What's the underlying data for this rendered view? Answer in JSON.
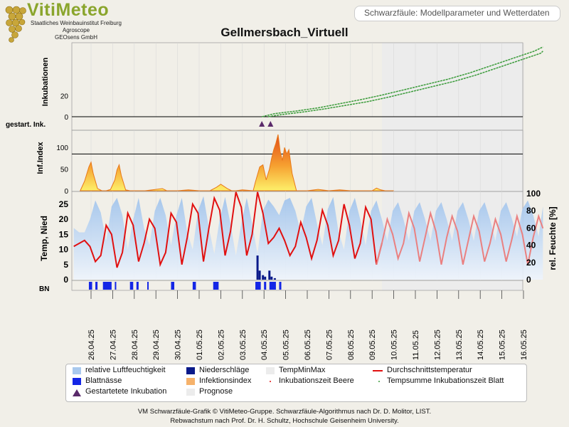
{
  "logo": {
    "name": "VitiMeteo",
    "lines": [
      "Staatliches Weinbauinstitut Freiburg",
      "Agroscope",
      "GEOsens GmbH"
    ]
  },
  "header": {
    "title": "Schwarzfäule: Modellparameter und Wetterdaten"
  },
  "colors": {
    "inkubation": "#3a9b3a",
    "infektion": "#e87818",
    "temp": "#e11010",
    "humidity": "#a9c9ee",
    "rain": "#0a1a8a",
    "leafwet": "#1426e6",
    "prognose": "#ececec",
    "marker": "#5a2a6a"
  },
  "chart_data": {
    "type": "line",
    "title": "Gellmersbach_Virtuell",
    "dates": [
      "26.04.25",
      "27.04.25",
      "28.04.25",
      "29.04.25",
      "30.04.25",
      "01.05.25",
      "02.05.25",
      "03.05.25",
      "04.05.25",
      "05.05.25",
      "06.05.25",
      "07.05.25",
      "08.05.25",
      "09.05.25",
      "10.05.25",
      "11.05.25",
      "12.05.25",
      "13.05.25",
      "14.05.25",
      "15.05.25",
      "16.05.25"
    ],
    "forecast_start": "09.05.25 12:00",
    "panels": [
      {
        "ylabel": "Inkubationen",
        "ticks": [
          0,
          20
        ],
        "series": [
          {
            "x": [
              7.9,
              8.5,
              9.5,
              10.5,
              11.5,
              12.5,
              13.5,
              14.5,
              15.5,
              16.5,
              17.5,
              18.5,
              19.5,
              20.5,
              20.9
            ],
            "y": [
              0,
              3,
              5.5,
              8.5,
              12.5,
              16.5,
              21,
              26,
              31,
              36,
              42,
              49,
              56,
              63,
              67
            ]
          },
          {
            "x": [
              8.2,
              8.8,
              9.8,
              10.8,
              11.8,
              12.8,
              13.8,
              14.8,
              15.8,
              16.8,
              17.8,
              18.8,
              19.8,
              20.8,
              20.9
            ],
            "y": [
              0,
              2,
              4.5,
              7.5,
              11,
              14.5,
              19,
              24,
              29,
              34,
              40,
              47,
              54,
              61,
              63
            ]
          }
        ]
      },
      {
        "ylabel": "gestart. Ink.",
        "markers_x": [
          7.9,
          8.3
        ]
      },
      {
        "ylabel": "Inf.Index",
        "ticks": [
          0,
          50,
          100
        ],
        "threshold": 85,
        "series": {
          "x": [
            -0.5,
            -0.3,
            -0.1,
            0,
            0.1,
            0.3,
            0.5,
            0.7,
            0.9,
            1.1,
            1.2,
            1.3,
            1.4,
            1.6,
            1.8,
            2.0,
            2.5,
            3.0,
            3.3,
            3.5,
            4.0,
            4.5,
            5.0,
            5.5,
            5.8,
            6.0,
            6.3,
            6.5,
            6.7,
            7.0,
            7.5,
            7.6,
            7.8,
            7.95,
            8.1,
            8.25,
            8.35,
            8.45,
            8.55,
            8.65,
            8.75,
            8.85,
            8.95,
            9.05,
            9.15,
            9.3,
            9.5,
            10.0,
            10.5,
            11.0,
            11.5,
            12.0,
            12.5,
            13.0,
            13.2,
            13.4,
            13.6,
            14.0
          ],
          "y": [
            0,
            22,
            55,
            66,
            40,
            5,
            0,
            0,
            3,
            25,
            48,
            60,
            35,
            2,
            0,
            0,
            0,
            3,
            5,
            0,
            0,
            2,
            0,
            0,
            8,
            15,
            5,
            0,
            0,
            2,
            0,
            20,
            55,
            60,
            25,
            50,
            75,
            95,
            110,
            130,
            90,
            70,
            100,
            85,
            95,
            40,
            0,
            0,
            3,
            0,
            2,
            0,
            0,
            0,
            6,
            2,
            0,
            0
          ]
        }
      },
      {
        "ylabel": "Temp, Nied",
        "ylabel_right": "rel. Feuchte [%]",
        "ticks": [
          0,
          5,
          10,
          15,
          20,
          25
        ],
        "ticks_right": [
          0,
          20,
          40,
          60,
          80,
          100
        ],
        "temperature": {
          "x": [
            -0.8,
            -0.55,
            -0.3,
            -0.05,
            0.2,
            0.45,
            0.7,
            0.95,
            1.2,
            1.45,
            1.7,
            1.95,
            2.2,
            2.45,
            2.7,
            2.95,
            3.2,
            3.45,
            3.7,
            3.95,
            4.2,
            4.45,
            4.7,
            4.95,
            5.2,
            5.45,
            5.7,
            5.95,
            6.2,
            6.45,
            6.7,
            6.95,
            7.2,
            7.45,
            7.7,
            7.95,
            8.2,
            8.45,
            8.7,
            8.95,
            9.2,
            9.45,
            9.7,
            9.95,
            10.2,
            10.45,
            10.7,
            10.95,
            11.2,
            11.45,
            11.7,
            11.95,
            12.2,
            12.45,
            12.7,
            12.95,
            13.2,
            13.45,
            13.7,
            13.95,
            14.2,
            14.45,
            14.7,
            14.95,
            15.2,
            15.45,
            15.7,
            15.95,
            16.2,
            16.45,
            16.7,
            16.95,
            17.2,
            17.45,
            17.7,
            17.95,
            18.2,
            18.45,
            18.7,
            18.95,
            19.2,
            19.45,
            19.7,
            19.95,
            20.2,
            20.45,
            20.7,
            20.9
          ],
          "y": [
            11,
            12,
            13,
            11,
            6,
            8,
            18,
            15,
            4,
            9,
            22,
            18,
            6,
            12,
            20,
            17,
            5,
            9,
            22,
            19,
            5,
            14,
            25,
            22,
            6,
            17,
            27,
            23,
            8,
            16,
            29,
            24,
            8,
            15,
            29,
            22,
            12,
            14,
            17,
            13,
            8,
            11,
            19,
            14,
            7,
            13,
            23,
            18,
            8,
            13,
            25,
            18,
            7,
            12,
            24,
            20,
            5,
            12,
            20,
            15,
            7,
            12,
            22,
            17,
            6,
            14,
            22,
            16,
            5,
            14,
            21,
            16,
            5,
            13,
            21,
            16,
            6,
            12,
            20,
            15,
            6,
            13,
            21,
            15,
            5,
            14,
            21,
            17
          ]
        },
        "humidity": {
          "x": [
            -0.8,
            -0.55,
            -0.3,
            -0.05,
            0.2,
            0.45,
            0.7,
            0.95,
            1.2,
            1.45,
            1.7,
            1.95,
            2.2,
            2.45,
            2.7,
            2.95,
            3.2,
            3.45,
            3.7,
            3.95,
            4.2,
            4.45,
            4.7,
            4.95,
            5.2,
            5.45,
            5.7,
            5.95,
            6.2,
            6.45,
            6.7,
            6.95,
            7.2,
            7.45,
            7.7,
            7.95,
            8.2,
            8.45,
            8.7,
            8.95,
            9.2,
            9.45,
            9.7,
            9.95,
            10.2,
            10.45,
            10.7,
            10.95,
            11.2,
            11.45,
            11.7,
            11.95,
            12.2,
            12.45,
            12.7,
            12.95,
            13.2,
            13.45,
            13.7,
            13.95,
            14.2,
            14.45,
            14.7,
            14.95,
            15.2,
            15.45,
            15.7,
            15.95,
            16.2,
            16.45,
            16.7,
            16.95,
            17.2,
            17.45,
            17.7,
            17.95,
            18.2,
            18.45,
            18.7,
            18.95,
            19.2,
            19.45,
            19.7,
            19.95,
            20.2,
            20.45,
            20.7,
            20.9
          ],
          "y": [
            60,
            55,
            55,
            70,
            92,
            78,
            45,
            85,
            95,
            75,
            35,
            70,
            95,
            60,
            40,
            80,
            95,
            75,
            40,
            75,
            95,
            55,
            35,
            80,
            97,
            60,
            30,
            70,
            96,
            65,
            28,
            65,
            95,
            65,
            30,
            80,
            93,
            85,
            75,
            92,
            95,
            80,
            55,
            85,
            95,
            65,
            40,
            82,
            96,
            55,
            35,
            80,
            95,
            70,
            40,
            80,
            92,
            70,
            45,
            80,
            90,
            70,
            45,
            80,
            90,
            70,
            45,
            80,
            90,
            70,
            45,
            80,
            90,
            70,
            45,
            80,
            90,
            70,
            45,
            80,
            90,
            72,
            50,
            82,
            92,
            75,
            50,
            85
          ]
        },
        "rain": {
          "x": [
            7.7,
            7.8,
            7.95,
            8.05,
            8.25,
            8.35,
            8.5
          ],
          "y": [
            8,
            3,
            1.5,
            1,
            3,
            1,
            0.5
          ]
        }
      },
      {
        "ylabel": "BN",
        "leafwet_intervals": [
          [
            -0.1,
            0.05
          ],
          [
            0.2,
            0.3
          ],
          [
            0.55,
            0.95
          ],
          [
            1.1,
            1.15
          ],
          [
            1.8,
            1.95
          ],
          [
            2.1,
            2.2
          ],
          [
            2.6,
            2.65
          ],
          [
            3.7,
            3.85
          ],
          [
            4.7,
            4.85
          ],
          [
            5.65,
            5.9
          ],
          [
            7.6,
            7.85
          ],
          [
            8.0,
            8.1
          ],
          [
            8.25,
            8.55
          ],
          [
            8.7,
            8.8
          ]
        ]
      }
    ]
  },
  "legend": {
    "items": [
      "relative Luftfeuchtigkeit",
      "Niederschläge",
      "TempMinMax",
      "Durchschnittstemperatur",
      "Blattnässe",
      "Infektionsindex",
      "Inkubationszeit Beere",
      "Tempsumme Inkubationszeit Blatt",
      "Gestartetete Inkubation",
      "Prognose"
    ]
  },
  "footer": {
    "line1": "VM Schwarzfäule-Grafik © VitiMeteo-Gruppe. Schwarzfäule-Algorithmus nach Dr. D. Molitor, LIST.",
    "line2": "Rebwachstum nach Prof. Dr. H. Schultz, Hochschule Geisenheim University."
  }
}
